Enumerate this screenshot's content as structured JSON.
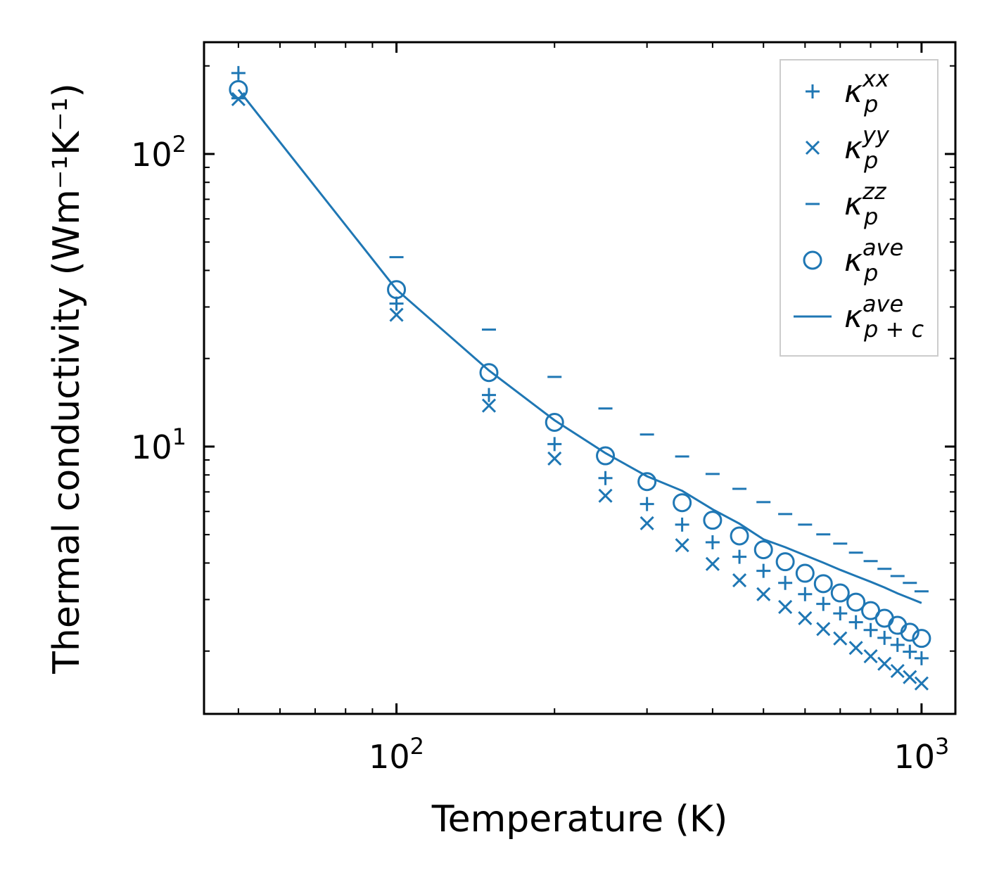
{
  "chart_data": {
    "type": "scatter",
    "xscale": "log",
    "yscale": "log",
    "xlabel": "Temperature (K)",
    "ylabel": "Thermal conductivity (Wm⁻¹K⁻¹)",
    "xlim": [
      43,
      1160
    ],
    "ylim": [
      1.22,
      241
    ],
    "grid": false,
    "legend_position": "top-right",
    "x_ticks": [
      {
        "base": "10",
        "exp": "2",
        "value": 100
      },
      {
        "base": "10",
        "exp": "3",
        "value": 1000
      }
    ],
    "y_ticks": [
      {
        "base": "10",
        "exp": "1",
        "value": 10
      },
      {
        "base": "10",
        "exp": "2",
        "value": 100
      }
    ],
    "x": [
      50,
      100,
      150,
      200,
      250,
      300,
      350,
      400,
      450,
      500,
      550,
      600,
      650,
      700,
      750,
      800,
      850,
      900,
      950,
      1000
    ],
    "series": [
      {
        "name": "kappa_p^xx",
        "label": {
          "base": "κ",
          "sub": "p",
          "sup": "xx"
        },
        "marker": "plus",
        "values": [
          189,
          30.8,
          15.0,
          10.2,
          7.8,
          6.36,
          5.41,
          4.71,
          4.2,
          3.76,
          3.42,
          3.13,
          2.9,
          2.69,
          2.51,
          2.36,
          2.22,
          2.1,
          1.99,
          1.89
        ]
      },
      {
        "name": "kappa_p^yy",
        "label": {
          "base": "κ",
          "sub": "p",
          "sup": "yy"
        },
        "marker": "x",
        "values": [
          154,
          28.2,
          13.8,
          9.1,
          6.79,
          5.47,
          4.6,
          3.97,
          3.49,
          3.13,
          2.83,
          2.59,
          2.38,
          2.21,
          2.05,
          1.92,
          1.81,
          1.71,
          1.63,
          1.55
        ]
      },
      {
        "name": "kappa_p^zz",
        "label": {
          "base": "κ",
          "sub": "p",
          "sup": "zz"
        },
        "marker": "hline",
        "values": [
          155,
          44.4,
          25.1,
          17.3,
          13.5,
          11.0,
          9.25,
          8.06,
          7.17,
          6.46,
          5.88,
          5.41,
          5.01,
          4.66,
          4.34,
          4.06,
          3.82,
          3.61,
          3.42,
          3.2
        ]
      },
      {
        "name": "kappa_p^ave",
        "label": {
          "base": "κ",
          "sub": "p",
          "sup": "ave"
        },
        "marker": "circle",
        "values": [
          166,
          34.4,
          17.9,
          12.1,
          9.3,
          7.59,
          6.43,
          5.6,
          4.95,
          4.44,
          4.04,
          3.69,
          3.4,
          3.16,
          2.94,
          2.75,
          2.59,
          2.45,
          2.32,
          2.21
        ]
      },
      {
        "name": "kappa_p+c^ave",
        "label": {
          "base": "κ",
          "sub": "p + c",
          "sup": "ave"
        },
        "marker": "line",
        "values": [
          166,
          34.4,
          18.2,
          12.3,
          9.5,
          7.92,
          7.06,
          6.1,
          5.45,
          4.82,
          4.53,
          4.25,
          4.01,
          3.79,
          3.61,
          3.45,
          3.3,
          3.15,
          3.03,
          2.92
        ]
      }
    ],
    "colors": {
      "series": "#1f77b4",
      "axes": "#000000",
      "legend_border": "#cccccc"
    }
  }
}
